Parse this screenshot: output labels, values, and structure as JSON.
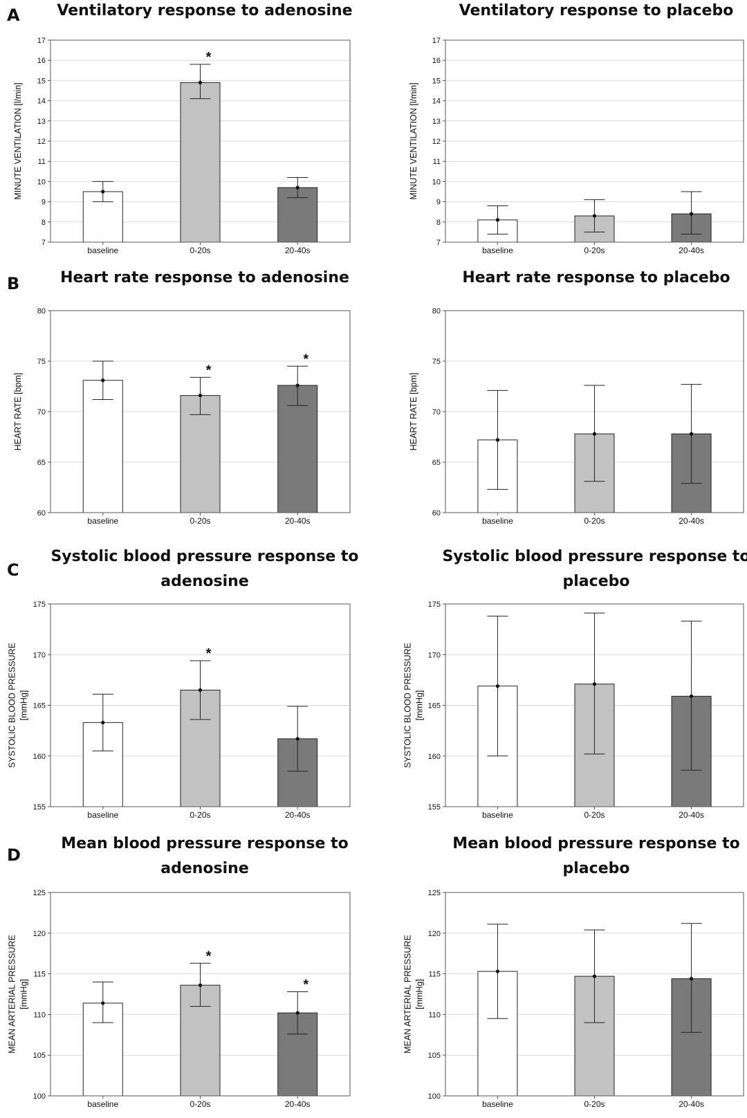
{
  "panel_letters": [
    "A",
    "B",
    "C",
    "D"
  ],
  "bar_colors": [
    "#ffffff",
    "#c2c2c2",
    "#7a7a7a"
  ],
  "chart_data": [
    {
      "type": "bar",
      "panel": "A",
      "title": [
        "Ventilatory response to adenosine"
      ],
      "ylabel": [
        "MINUTE VENTILATION [l/min]"
      ],
      "categories": [
        "baseline",
        "0-20s",
        "20-40s"
      ],
      "values": [
        9.5,
        14.9,
        9.7
      ],
      "error_low": [
        9.0,
        14.1,
        9.2
      ],
      "error_high": [
        10.0,
        15.8,
        10.2
      ],
      "significant": [
        false,
        true,
        false
      ],
      "ylim": [
        7,
        17
      ],
      "yticks": [
        7,
        8,
        9,
        10,
        11,
        12,
        13,
        14,
        15,
        16,
        17
      ],
      "grid": true
    },
    {
      "type": "bar",
      "panel": "A",
      "title": [
        "Ventilatory response to placebo"
      ],
      "ylabel": [
        "MINUTE VENTILATION [l/min]"
      ],
      "categories": [
        "baseline",
        "0-20s",
        "20-40s"
      ],
      "values": [
        8.1,
        8.3,
        8.4
      ],
      "error_low": [
        7.4,
        7.5,
        7.4
      ],
      "error_high": [
        8.8,
        9.1,
        9.5
      ],
      "significant": [
        false,
        false,
        false
      ],
      "ylim": [
        7,
        17
      ],
      "yticks": [
        7,
        8,
        9,
        10,
        11,
        12,
        13,
        14,
        15,
        16,
        17
      ],
      "grid": true
    },
    {
      "type": "bar",
      "panel": "B",
      "title": [
        "Heart rate response to adenosine"
      ],
      "ylabel": [
        "HEART RATE [bpm]"
      ],
      "categories": [
        "baseline",
        "0-20s",
        "20-40s"
      ],
      "values": [
        73.1,
        71.6,
        72.6
      ],
      "error_low": [
        71.2,
        69.7,
        70.6
      ],
      "error_high": [
        75.0,
        73.4,
        74.5
      ],
      "significant": [
        false,
        true,
        true
      ],
      "ylim": [
        60,
        80
      ],
      "yticks": [
        60,
        65,
        70,
        75,
        80
      ],
      "grid": true
    },
    {
      "type": "bar",
      "panel": "B",
      "title": [
        "Heart rate response to placebo"
      ],
      "ylabel": [
        "HEART RATE [bpm]"
      ],
      "categories": [
        "baseline",
        "0-20s",
        "20-40s"
      ],
      "values": [
        67.2,
        67.8,
        67.8
      ],
      "error_low": [
        62.3,
        63.1,
        62.9
      ],
      "error_high": [
        72.1,
        72.6,
        72.7
      ],
      "significant": [
        false,
        false,
        false
      ],
      "ylim": [
        60,
        80
      ],
      "yticks": [
        60,
        65,
        70,
        75,
        80
      ],
      "grid": true
    },
    {
      "type": "bar",
      "panel": "C",
      "title": [
        "Systolic blood pressure response to",
        "adenosine"
      ],
      "ylabel": [
        "SYSTOLIC BLOOD PRESSURE",
        "[mmHg]"
      ],
      "categories": [
        "baseline",
        "0-20s",
        "20-40s"
      ],
      "values": [
        163.3,
        166.5,
        161.7
      ],
      "error_low": [
        160.5,
        163.6,
        158.5
      ],
      "error_high": [
        166.1,
        169.4,
        164.9
      ],
      "significant": [
        false,
        true,
        false
      ],
      "ylim": [
        155,
        175
      ],
      "yticks": [
        155,
        160,
        165,
        170,
        175
      ],
      "grid": true
    },
    {
      "type": "bar",
      "panel": "C",
      "title": [
        "Systolic blood pressure response to",
        "placebo"
      ],
      "ylabel": [
        "SYSTOLIC BLOOD PRESSURE",
        "[mmHg]"
      ],
      "categories": [
        "baseline",
        "0-20s",
        "20-40s"
      ],
      "values": [
        166.9,
        167.1,
        165.9
      ],
      "error_low": [
        160.0,
        160.2,
        158.6
      ],
      "error_high": [
        173.8,
        174.1,
        173.3
      ],
      "significant": [
        false,
        false,
        false
      ],
      "ylim": [
        155,
        175
      ],
      "yticks": [
        155,
        160,
        165,
        170,
        175
      ],
      "grid": true
    },
    {
      "type": "bar",
      "panel": "D",
      "title": [
        "Mean blood pressure response to",
        "adenosine"
      ],
      "ylabel": [
        "MEAN ARTERIAL PRESSURE",
        "[mmHg]"
      ],
      "categories": [
        "baseline",
        "0-20s",
        "20-40s"
      ],
      "values": [
        111.4,
        113.6,
        110.2
      ],
      "error_low": [
        109.0,
        111.0,
        107.6
      ],
      "error_high": [
        114.0,
        116.3,
        112.8
      ],
      "significant": [
        false,
        true,
        true
      ],
      "ylim": [
        100,
        125
      ],
      "yticks": [
        100,
        105,
        110,
        115,
        120,
        125
      ],
      "grid": true
    },
    {
      "type": "bar",
      "panel": "D",
      "title": [
        "Mean blood pressure response to",
        "placebo"
      ],
      "ylabel": [
        "MEAN ARTERIAL PRESSURE",
        "[mmHg]"
      ],
      "categories": [
        "baseline",
        "0-20s",
        "20-40s"
      ],
      "values": [
        115.3,
        114.7,
        114.4
      ],
      "error_low": [
        109.5,
        109.0,
        107.8
      ],
      "error_high": [
        121.1,
        120.4,
        121.2
      ],
      "significant": [
        false,
        false,
        false
      ],
      "ylim": [
        100,
        125
      ],
      "yticks": [
        100,
        105,
        110,
        115,
        120,
        125
      ],
      "grid": true
    }
  ]
}
